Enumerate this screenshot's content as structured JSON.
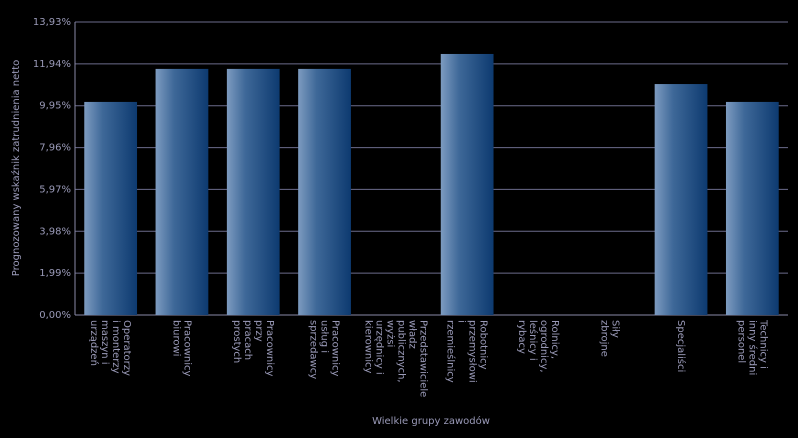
{
  "chart_data": {
    "type": "bar",
    "x_label": "Wielkie grupy zawodów",
    "y_label": "Prognozowany wskaźnik zatrudnienia netto",
    "categories": [
      "Operatorzy i monterzy maszyn i urządzeń",
      "Pracownicy biurowi",
      "Pracownicy przy pracach prostych",
      "Pracownicy usług i sprzedawcy",
      "Przedstawiciele władz publicznych, wyżsi urzędnicy i kierownicy",
      "Robotnicy przemysłowi i rzemieślnicy",
      "Rolnicy, ogrodnicy, leśnicy i rybacy",
      "Siły zbrojne",
      "Specjaliści",
      "Technicy i inny średni personel"
    ],
    "values": [
      10.13,
      11.7,
      11.7,
      11.7,
      null,
      12.41,
      null,
      null,
      10.98,
      10.13
    ],
    "color": "#0d3a70",
    "ylim": [
      0,
      13.93
    ],
    "yticks": [
      {
        "value": 0,
        "label": "0,00%"
      },
      {
        "value": 1.99,
        "label": "1,99%"
      },
      {
        "value": 3.98,
        "label": "3,98%"
      },
      {
        "value": 5.97,
        "label": "5,97%"
      },
      {
        "value": 7.96,
        "label": "7,96%"
      },
      {
        "value": 9.95,
        "label": "9,95%"
      },
      {
        "value": 11.94,
        "label": "11,94%"
      },
      {
        "value": 13.93,
        "label": "13,93%"
      }
    ],
    "grid": true
  }
}
